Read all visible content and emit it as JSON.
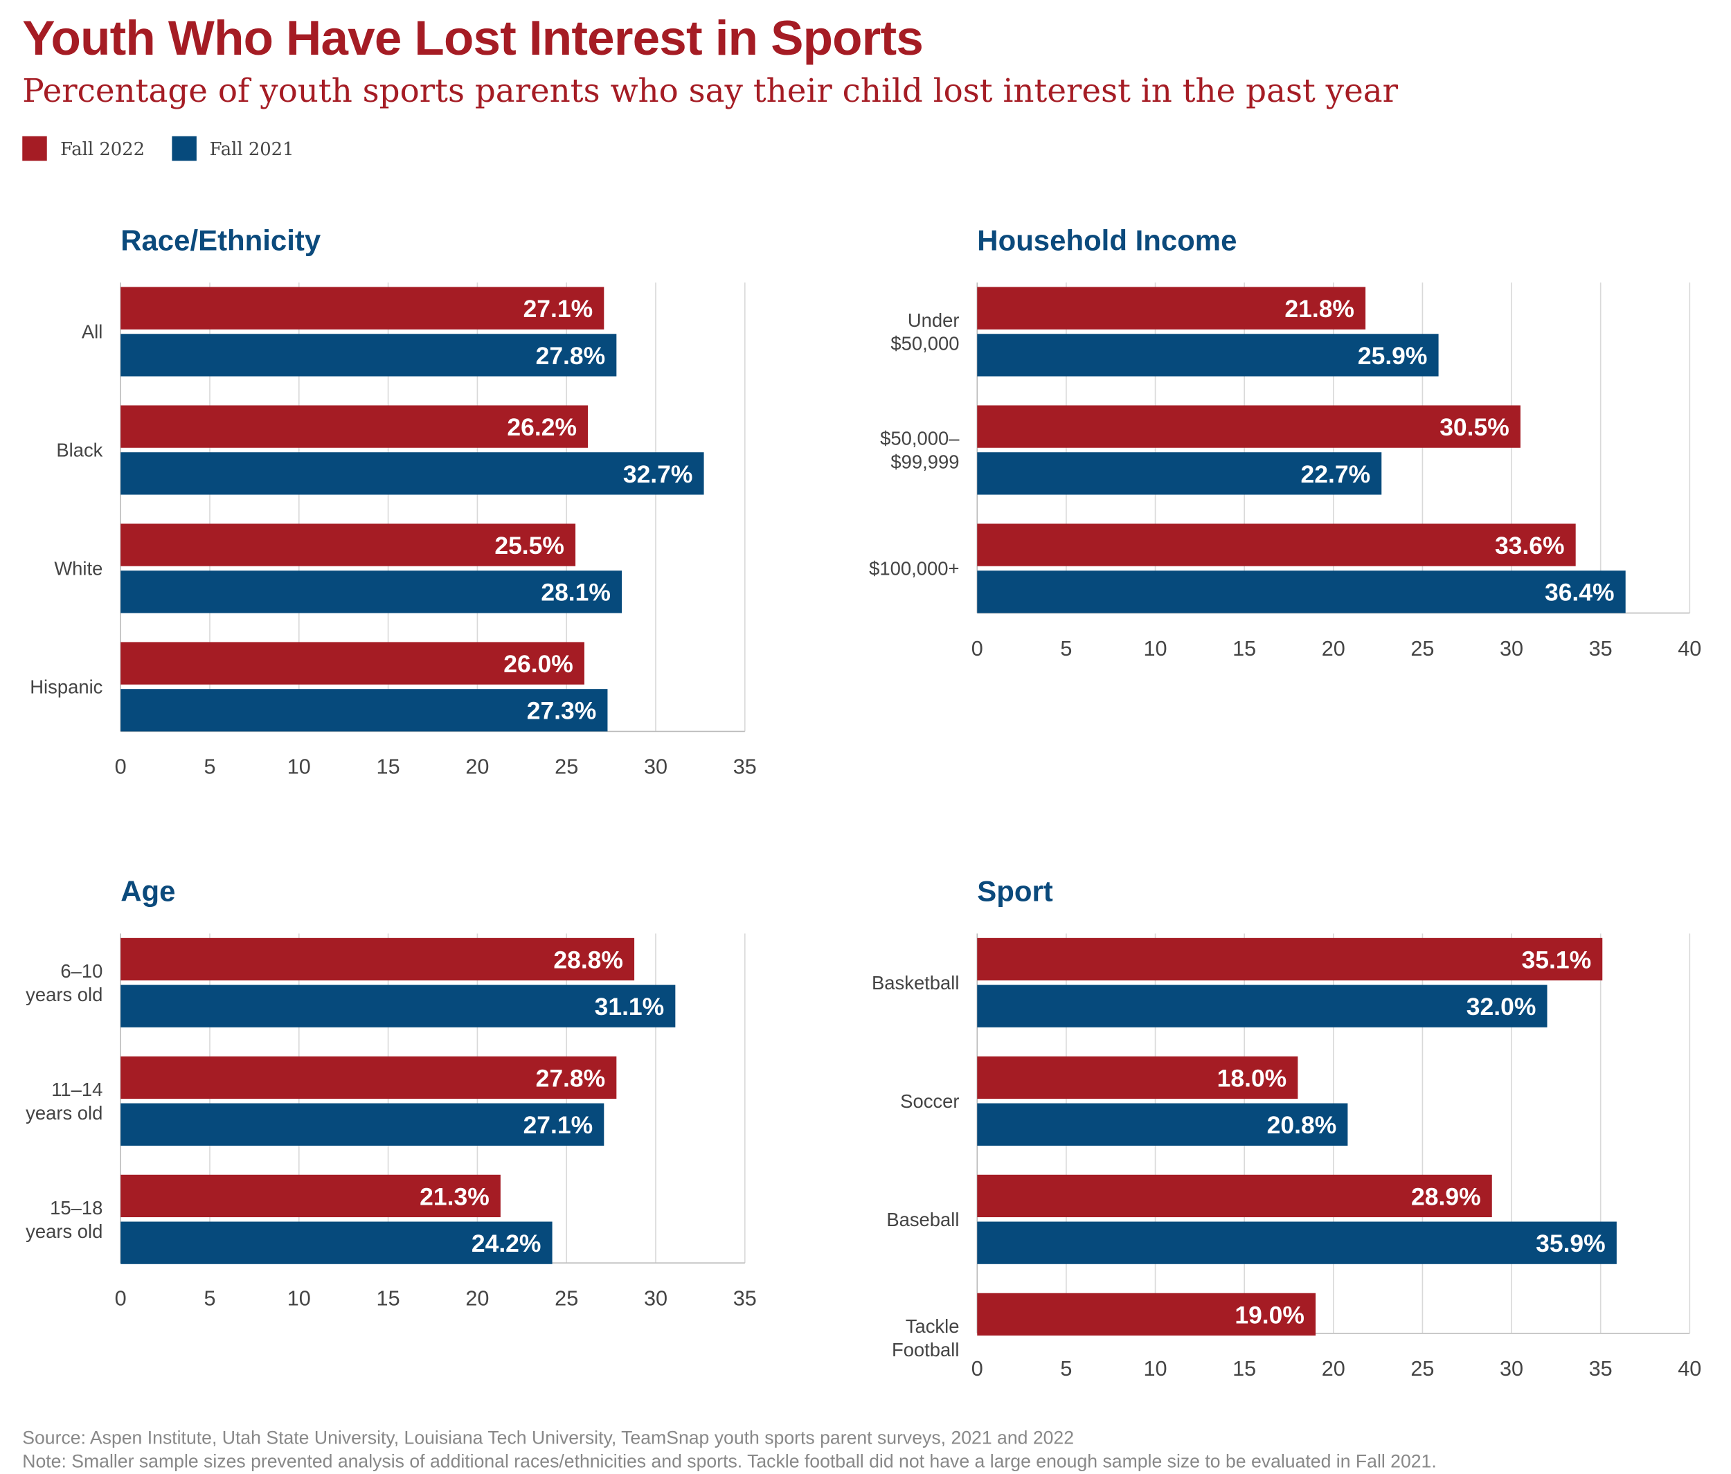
{
  "title": "Youth Who Have Lost Interest in Sports",
  "subtitle": "Percentage of youth sports parents who say their child lost interest in the past year",
  "legend": [
    {
      "label": "Fall 2022",
      "color": "#a51c24"
    },
    {
      "label": "Fall 2021",
      "color": "#064a7c"
    }
  ],
  "chart_data": [
    {
      "type": "bar",
      "orientation": "horizontal",
      "title": "Race/Ethnicity",
      "categories": [
        "All",
        "Black",
        "White",
        "Hispanic"
      ],
      "series": [
        {
          "name": "Fall 2022",
          "values": [
            27.1,
            26.2,
            25.5,
            26.0
          ]
        },
        {
          "name": "Fall 2021",
          "values": [
            27.8,
            32.7,
            28.1,
            27.3
          ]
        }
      ],
      "xlim": [
        0,
        35
      ],
      "ticks": [
        0,
        5,
        10,
        15,
        20,
        25,
        30,
        35
      ],
      "grid": true
    },
    {
      "type": "bar",
      "orientation": "horizontal",
      "title": "Household Income",
      "categories": [
        "Under\n$50,000",
        "$50,000–\n$99,999",
        "$100,000+"
      ],
      "series": [
        {
          "name": "Fall 2022",
          "values": [
            21.8,
            30.5,
            33.6
          ]
        },
        {
          "name": "Fall 2021",
          "values": [
            25.9,
            22.7,
            36.4
          ]
        }
      ],
      "xlim": [
        0,
        40
      ],
      "ticks": [
        0,
        5,
        10,
        15,
        20,
        25,
        30,
        35,
        40
      ],
      "grid": true
    },
    {
      "type": "bar",
      "orientation": "horizontal",
      "title": "Age",
      "categories": [
        "6–10\nyears old",
        "11–14\nyears old",
        "15–18\nyears old"
      ],
      "series": [
        {
          "name": "Fall 2022",
          "values": [
            28.8,
            27.8,
            21.3
          ]
        },
        {
          "name": "Fall 2021",
          "values": [
            31.1,
            27.1,
            24.2
          ]
        }
      ],
      "xlim": [
        0,
        35
      ],
      "ticks": [
        0,
        5,
        10,
        15,
        20,
        25,
        30,
        35
      ],
      "grid": true
    },
    {
      "type": "bar",
      "orientation": "horizontal",
      "title": "Sport",
      "categories": [
        "Basketball",
        "Soccer",
        "Baseball",
        "Tackle\nFootball"
      ],
      "series": [
        {
          "name": "Fall 2022",
          "values": [
            35.1,
            18.0,
            28.9,
            19.0
          ]
        },
        {
          "name": "Fall 2021",
          "values": [
            32.0,
            20.8,
            35.9,
            null
          ]
        }
      ],
      "xlim": [
        0,
        40
      ],
      "ticks": [
        0,
        5,
        10,
        15,
        20,
        25,
        30,
        35,
        40
      ],
      "grid": true
    }
  ],
  "footer": {
    "source": "Source: Aspen Institute, Utah State University, Louisiana Tech University, TeamSnap youth sports parent surveys, 2021 and 2022",
    "note": "Note: Smaller sample sizes prevented analysis of additional races/ethnicities and sports. Tackle football did not have a large enough sample size to be evaluated in Fall 2021."
  }
}
